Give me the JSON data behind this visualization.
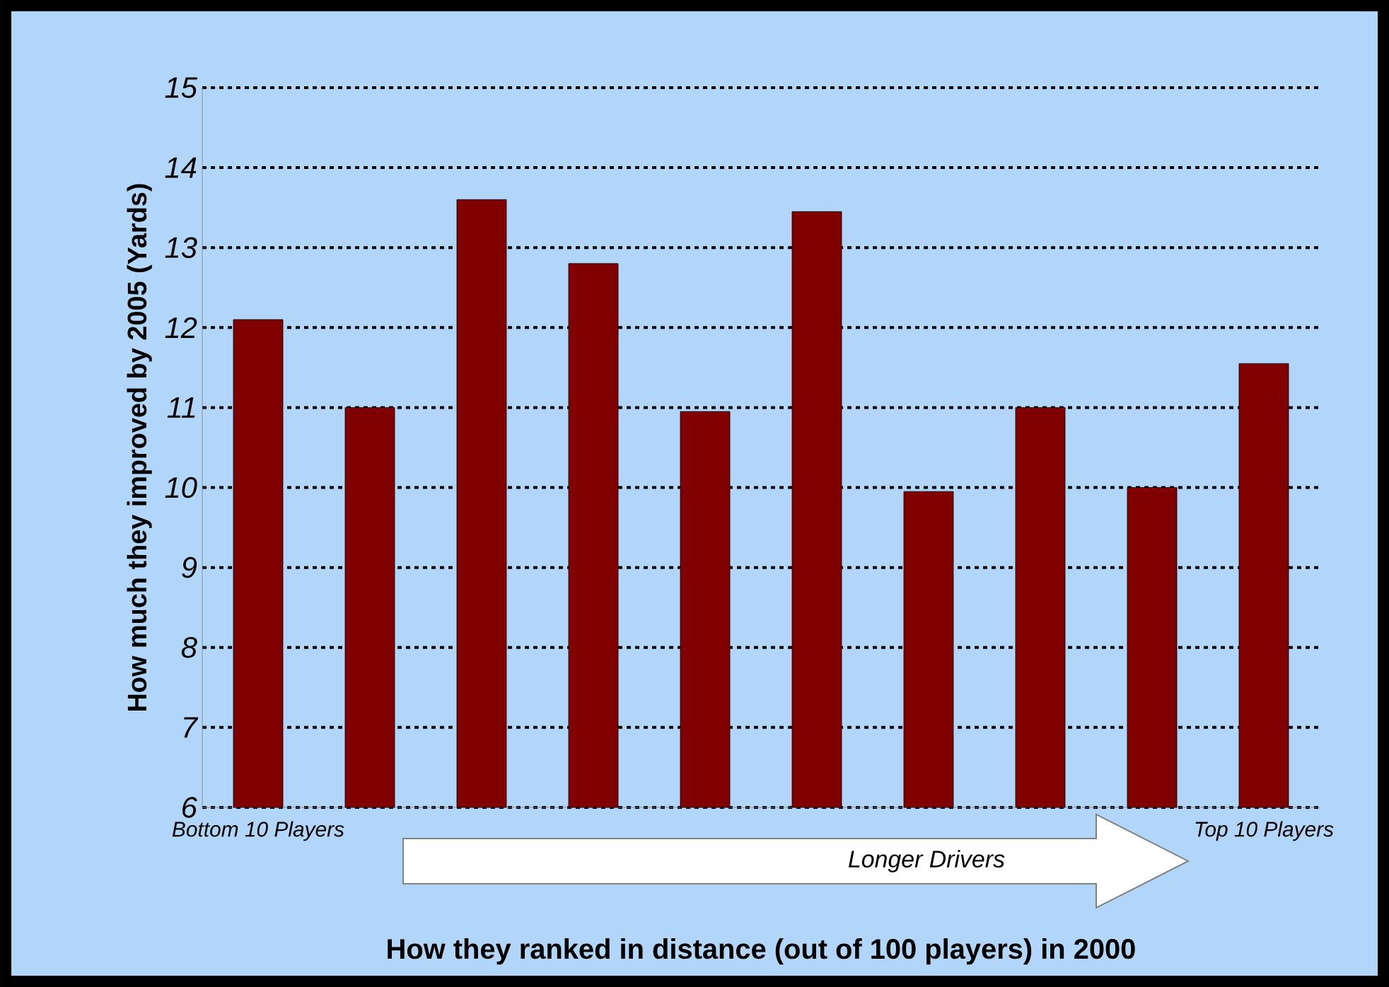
{
  "chart_data": {
    "type": "bar",
    "xlabel": "How they ranked in distance (out of 100 players) in 2000",
    "ylabel": "How much they improved by 2005 (Yards)",
    "categories": [
      "Bottom 10 Players",
      null,
      null,
      null,
      null,
      null,
      null,
      null,
      null,
      "Top 10 Players"
    ],
    "values": [
      12.1,
      11.0,
      13.6,
      12.8,
      10.95,
      13.45,
      9.95,
      11.0,
      10.0,
      11.55
    ],
    "color": "#800000",
    "ylim": [
      6,
      15
    ],
    "yticks": [
      6,
      7,
      8,
      9,
      10,
      11,
      12,
      13,
      14,
      15
    ],
    "grid": "y",
    "annotations": [
      "Longer Drivers"
    ]
  }
}
